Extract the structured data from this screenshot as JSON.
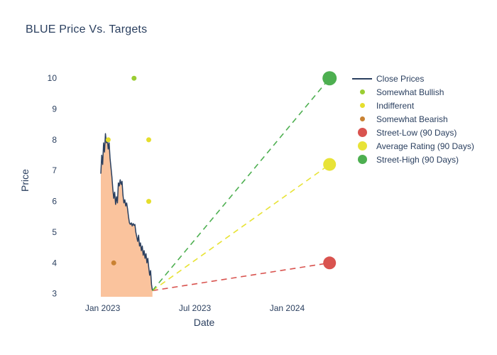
{
  "chart_data": {
    "type": "line+scatter",
    "title": "BLUE Price Vs. Targets",
    "xlabel": "Date",
    "ylabel": "Price",
    "xlim": [
      2022.79,
      2024.31
    ],
    "ylim": [
      2.9,
      10.35
    ],
    "grid": false,
    "legend_position": "right",
    "font_color": "#2a3f5f",
    "background": "#ffffff",
    "yticks": [
      3,
      4,
      5,
      6,
      7,
      8,
      9,
      10
    ],
    "xticks": [
      {
        "value": 2023.0,
        "label": "Jan 2023"
      },
      {
        "value": 2023.5,
        "label": "Jul 2023"
      },
      {
        "value": 2024.0,
        "label": "Jan 2024"
      }
    ],
    "series": [
      {
        "name": "Close Prices",
        "type": "line",
        "color": "#2a3f5f",
        "fill_color": "#f9b98c",
        "fill_opacity": 0.85,
        "x": [
          2022.99,
          2022.995,
          2023.0,
          2023.005,
          2023.01,
          2023.015,
          2023.02,
          2023.025,
          2023.03,
          2023.035,
          2023.04,
          2023.045,
          2023.05,
          2023.055,
          2023.06,
          2023.065,
          2023.07,
          2023.075,
          2023.08,
          2023.085,
          2023.09,
          2023.095,
          2023.1,
          2023.105,
          2023.11,
          2023.115,
          2023.12,
          2023.125,
          2023.13,
          2023.135,
          2023.14,
          2023.145,
          2023.15,
          2023.155,
          2023.16,
          2023.165,
          2023.17,
          2023.175,
          2023.18,
          2023.185,
          2023.19,
          2023.195,
          2023.2,
          2023.205,
          2023.21,
          2023.215,
          2023.22,
          2023.225,
          2023.23,
          2023.235,
          2023.24,
          2023.245,
          2023.25,
          2023.255,
          2023.26,
          2023.265,
          2023.27
        ],
        "y": [
          6.9,
          7.5,
          7.2,
          7.9,
          7.6,
          8.2,
          7.9,
          8.05,
          7.7,
          7.9,
          7.4,
          7.1,
          6.8,
          6.4,
          6.1,
          6.3,
          5.9,
          6.15,
          5.95,
          6.6,
          6.5,
          6.7,
          6.55,
          6.65,
          6.2,
          5.95,
          6.05,
          5.85,
          5.95,
          5.75,
          5.5,
          5.3,
          5.25,
          5.3,
          5.2,
          5.28,
          5.22,
          5.25,
          5.0,
          4.85,
          4.7,
          4.9,
          4.55,
          4.65,
          4.4,
          4.55,
          4.25,
          4.4,
          4.15,
          4.3,
          4.0,
          4.15,
          3.85,
          3.6,
          3.75,
          3.3,
          3.1
        ]
      },
      {
        "name": "Somewhat Bullish",
        "type": "scatter",
        "color": "#9acd32",
        "size": 3.5,
        "points": [
          [
            2023.17,
            10
          ]
        ]
      },
      {
        "name": "Indifferent",
        "type": "scatter",
        "color": "#e5de2d",
        "size": 3.5,
        "points": [
          [
            2023.03,
            8
          ],
          [
            2023.25,
            8
          ],
          [
            2023.25,
            6
          ]
        ]
      },
      {
        "name": "Somewhat Bearish",
        "type": "scatter",
        "color": "#c98233",
        "size": 3.5,
        "points": [
          [
            2023.06,
            4
          ]
        ]
      },
      {
        "name": "Street-Low (90 Days)",
        "type": "target",
        "color": "#d9534f",
        "size": 9,
        "line_from": [
          2023.27,
          3.1
        ],
        "point": [
          2024.23,
          4
        ]
      },
      {
        "name": "Average Rating (90 Days)",
        "type": "target",
        "color": "#e8e337",
        "size": 9,
        "line_from": [
          2023.27,
          3.1
        ],
        "point": [
          2024.23,
          7.2
        ]
      },
      {
        "name": "Street-High (90 Days)",
        "type": "target",
        "color": "#4daf50",
        "size": 10,
        "line_from": [
          2023.27,
          3.1
        ],
        "point": [
          2024.23,
          10
        ]
      }
    ]
  }
}
